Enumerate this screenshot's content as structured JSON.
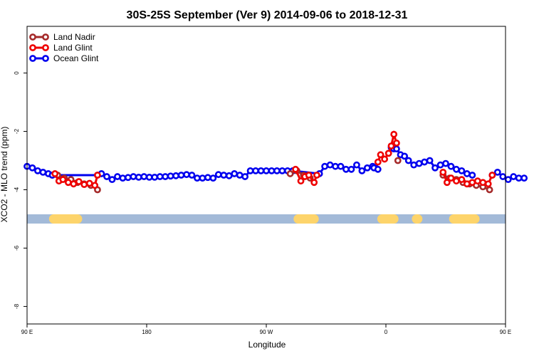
{
  "chart_data": {
    "type": "line",
    "title": "30S-25S September (Ver 9)   2014-09-06 to 2018-12-31",
    "xlabel": "Longitude",
    "ylabel": "XCO2 - MLO trend (ppm)",
    "xlim": [
      90,
      450
    ],
    "ylim": [
      -8.6,
      1.6
    ],
    "x_ticks": [
      {
        "value": 90,
        "label": "90 E"
      },
      {
        "value": 180,
        "label": "180"
      },
      {
        "value": 270,
        "label": "90 W"
      },
      {
        "value": 360,
        "label": "0"
      },
      {
        "value": 450,
        "label": "90 E"
      },
      {
        "value": 540,
        "label": "180"
      }
    ],
    "y_ticks": [
      {
        "value": 0,
        "label": "0"
      },
      {
        "value": -2,
        "label": "-2"
      },
      {
        "value": -4,
        "label": "-4"
      },
      {
        "value": -6,
        "label": "-6"
      },
      {
        "value": -8,
        "label": "-8"
      }
    ],
    "grid": false,
    "legend_position": "top-left",
    "land_ocean_strip": {
      "y": -5,
      "ocean_color": "#a3bad8",
      "land_color": "#fdd46b",
      "land_segments": [
        [
          110,
          128
        ],
        [
          294,
          306
        ],
        [
          357,
          366
        ],
        [
          383,
          384
        ],
        [
          411,
          427
        ]
      ]
    },
    "series": [
      {
        "name": "Land Nadir",
        "color": "#a52a2a",
        "segments": [
          {
            "x": [
              113,
              118,
              123,
              128,
              133,
              138,
              143
            ],
            "y": [
              -3.5,
              -3.6,
              -3.65,
              -3.75,
              -3.8,
              -3.85,
              -4.0
            ]
          },
          {
            "x": [
              288,
              293,
              298,
              303
            ],
            "y": [
              -3.45,
              -3.35,
              -3.5,
              -3.6
            ]
          },
          {
            "x": [
              369
            ],
            "y": [
              -3.0
            ]
          },
          {
            "x": [
              403,
              408,
              413,
              418,
              423,
              428,
              433,
              438
            ],
            "y": [
              -3.5,
              -3.6,
              -3.65,
              -3.75,
              -3.8,
              -3.85,
              -3.9,
              -4.0
            ]
          }
        ]
      },
      {
        "name": "Land Glint",
        "color": "#ee0000",
        "segments": [
          {
            "x": [
              111,
              114,
              117,
              121,
              125,
              129,
              133,
              137,
              141,
              143
            ],
            "y": [
              -3.45,
              -3.7,
              -3.65,
              -3.75,
              -3.8,
              -3.72,
              -3.82,
              -3.78,
              -3.85,
              -3.5
            ]
          },
          {
            "x": [
              292,
              296,
              299,
              302,
              306,
              308
            ],
            "y": [
              -3.3,
              -3.7,
              -3.55,
              -3.5,
              -3.75,
              -3.5
            ]
          },
          {
            "x": [
              354,
              356,
              359,
              362,
              364,
              366,
              368
            ],
            "y": [
              -3.05,
              -2.8,
              -2.95,
              -2.75,
              -2.5,
              -2.1,
              -2.4
            ]
          },
          {
            "x": [
              403,
              406,
              409,
              413,
              417,
              421,
              425,
              429,
              433,
              437,
              440
            ],
            "y": [
              -3.4,
              -3.75,
              -3.6,
              -3.7,
              -3.65,
              -3.8,
              -3.75,
              -3.7,
              -3.75,
              -3.8,
              -3.5
            ]
          }
        ]
      },
      {
        "name": "Ocean Glint",
        "color": "#0000ee",
        "segments": [
          {
            "x": [
              90,
              94,
              98,
              102,
              106,
              109,
              109,
              143,
              146,
              150,
              154,
              158,
              162,
              166,
              170,
              174,
              178,
              182,
              186,
              190,
              194,
              198,
              202,
              206,
              210,
              214,
              218,
              222,
              226,
              230,
              234,
              238,
              242,
              246,
              250,
              254,
              258,
              262,
              266,
              270,
              274,
              278,
              282,
              286,
              290,
              290,
              310,
              314,
              318,
              322,
              326,
              330,
              334,
              338,
              342,
              346,
              350,
              352
            ],
            "y": [
              -3.2,
              -3.25,
              -3.35,
              -3.4,
              -3.45,
              -3.5,
              -3.5,
              -3.5,
              -3.45,
              -3.55,
              -3.65,
              -3.55,
              -3.6,
              -3.58,
              -3.55,
              -3.57,
              -3.55,
              -3.57,
              -3.57,
              -3.55,
              -3.55,
              -3.53,
              -3.52,
              -3.5,
              -3.48,
              -3.5,
              -3.6,
              -3.6,
              -3.58,
              -3.6,
              -3.48,
              -3.5,
              -3.52,
              -3.45,
              -3.5,
              -3.55,
              -3.35,
              -3.35,
              -3.35,
              -3.35,
              -3.35,
              -3.35,
              -3.35,
              -3.35,
              -3.35,
              -3.35,
              -3.45,
              -3.2,
              -3.15,
              -3.2,
              -3.2,
              -3.3,
              -3.3,
              -3.15,
              -3.35,
              -3.25,
              -3.2,
              -3.25
            ]
          },
          {
            "x": [
              351,
              354
            ],
            "y": [
              -3.25,
              -3.3
            ]
          },
          {
            "x": [
              364,
              366,
              368,
              371,
              374,
              377,
              381,
              385,
              389,
              393,
              397,
              401,
              405,
              409,
              413,
              417,
              421,
              425
            ],
            "y": [
              -2.55,
              -2.6,
              -2.6,
              -2.8,
              -2.85,
              -3.0,
              -3.15,
              -3.1,
              -3.05,
              -3.0,
              -3.25,
              -3.15,
              -3.1,
              -3.2,
              -3.3,
              -3.35,
              -3.45,
              -3.5
            ]
          },
          {
            "x": [
              440,
              444,
              448,
              452,
              456,
              460,
              464
            ],
            "y": [
              -3.5,
              -3.4,
              -3.55,
              -3.65,
              -3.55,
              -3.6,
              -3.6
            ]
          }
        ]
      }
    ]
  }
}
